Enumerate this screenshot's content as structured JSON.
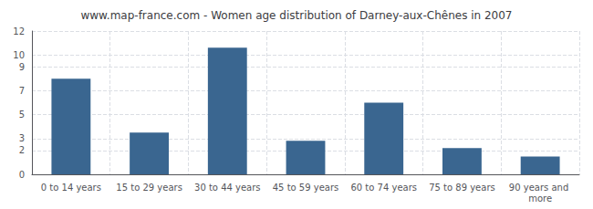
{
  "chart_data": {
    "type": "bar",
    "title": "www.map-france.com - Women age distribution of Darney-aux-Chênes in 2007",
    "categories": [
      "0 to 14 years",
      "15 to 29 years",
      "30 to 44 years",
      "45 to 59 years",
      "60 to 74 years",
      "75 to 89 years",
      "90 years and more"
    ],
    "values": [
      8.0,
      3.5,
      10.6,
      2.8,
      6.0,
      2.2,
      1.5
    ],
    "color": "#3a6690",
    "ylim": [
      0,
      12
    ],
    "yticks": [
      0,
      2,
      3,
      5,
      7,
      9,
      10,
      12
    ],
    "grid": true
  }
}
